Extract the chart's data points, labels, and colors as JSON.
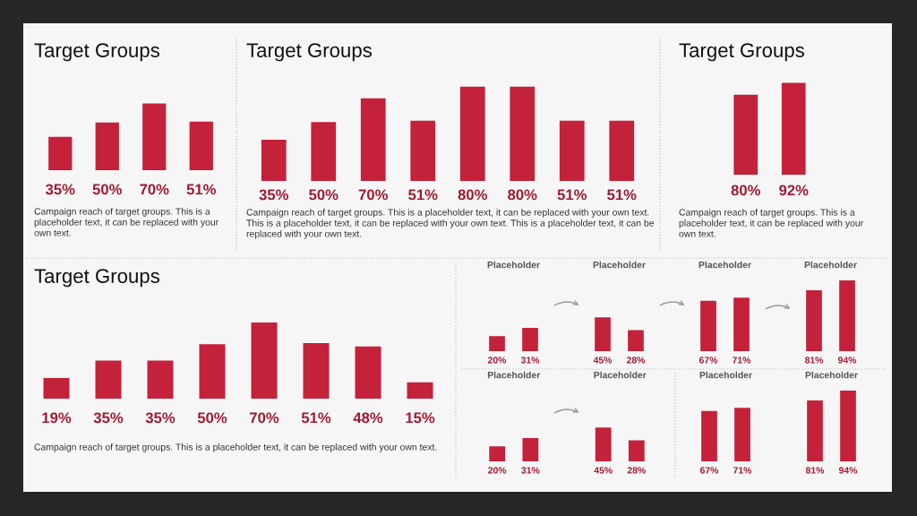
{
  "chart_data": [
    {
      "type": "bar",
      "title": "Target Groups",
      "categories": [
        null,
        null,
        null,
        null
      ],
      "values": [
        35,
        50,
        70,
        51
      ],
      "value_labels": [
        "35%",
        "50%",
        "70%",
        "51%"
      ],
      "color": "#c4213a",
      "tick_labels": false,
      "annotations": [
        "Campaign reach of target groups. This is a placeholder text, it can be replaced with your own text."
      ]
    },
    {
      "type": "bar",
      "title": "Target Groups",
      "categories": [
        null,
        null,
        null,
        null,
        null,
        null,
        null,
        null
      ],
      "values": [
        35,
        50,
        70,
        51,
        80,
        80,
        51,
        51
      ],
      "value_labels": [
        "35%",
        "50%",
        "70%",
        "51%",
        "80%",
        "80%",
        "51%",
        "51%"
      ],
      "color": "#c4213a",
      "tick_labels": false,
      "annotations": [
        "Campaign reach of target groups. This is a placeholder text, it can be replaced with your own text. This is a placeholder text, it can be replaced with your own text. This is a placeholder text, it can be replaced with your own text."
      ]
    },
    {
      "type": "bar",
      "title": "Target Groups",
      "categories": [
        null,
        null
      ],
      "values": [
        80,
        92
      ],
      "value_labels": [
        "80%",
        "92%"
      ],
      "color": "#c4213a",
      "tick_labels": false,
      "annotations": [
        "Campaign reach of target groups. This is a placeholder text, it can be replaced with your own text."
      ]
    },
    {
      "type": "bar",
      "title": "Target Groups",
      "categories": [
        null,
        null,
        null,
        null,
        null,
        null,
        null,
        null
      ],
      "values": [
        19,
        35,
        35,
        50,
        70,
        51,
        48,
        15
      ],
      "value_labels": [
        "19%",
        "35%",
        "35%",
        "50%",
        "70%",
        "51%",
        "48%",
        "15%"
      ],
      "color": "#c4213a",
      "tick_labels": false,
      "annotations": [
        "Campaign reach of target groups. This is a placeholder text, it can be replaced with your own text."
      ]
    },
    {
      "type": "bar",
      "categories": [
        "Placeholder",
        "Placeholder",
        "Placeholder",
        "Placeholder"
      ],
      "series": [
        {
          "color": "#c4213a",
          "values": [
            20,
            45,
            67,
            81
          ],
          "value_labels": [
            "20%",
            "45%",
            "67%",
            "81%"
          ]
        },
        {
          "color": "#c4213a",
          "values": [
            31,
            28,
            71,
            94
          ],
          "value_labels": [
            "31%",
            "28%",
            "71%",
            "94%"
          ]
        }
      ],
      "tick_labels": "x"
    },
    {
      "type": "bar",
      "categories": [
        "Placeholder",
        "Placeholder"
      ],
      "series": [
        {
          "color": "#c4213a",
          "values": [
            20,
            45
          ],
          "value_labels": [
            "20%",
            "45%"
          ]
        },
        {
          "color": "#c4213a",
          "values": [
            31,
            28
          ],
          "value_labels": [
            "31%",
            "28%"
          ]
        }
      ],
      "tick_labels": "x"
    },
    {
      "type": "bar",
      "categories": [
        "Placeholder",
        "Placeholder"
      ],
      "series": [
        {
          "color": "#c4213a",
          "values": [
            67,
            81
          ],
          "value_labels": [
            "67%",
            "81%"
          ]
        },
        {
          "color": "#c4213a",
          "values": [
            71,
            94
          ],
          "value_labels": [
            "71%",
            "94%"
          ]
        }
      ],
      "tick_labels": "x"
    }
  ]
}
